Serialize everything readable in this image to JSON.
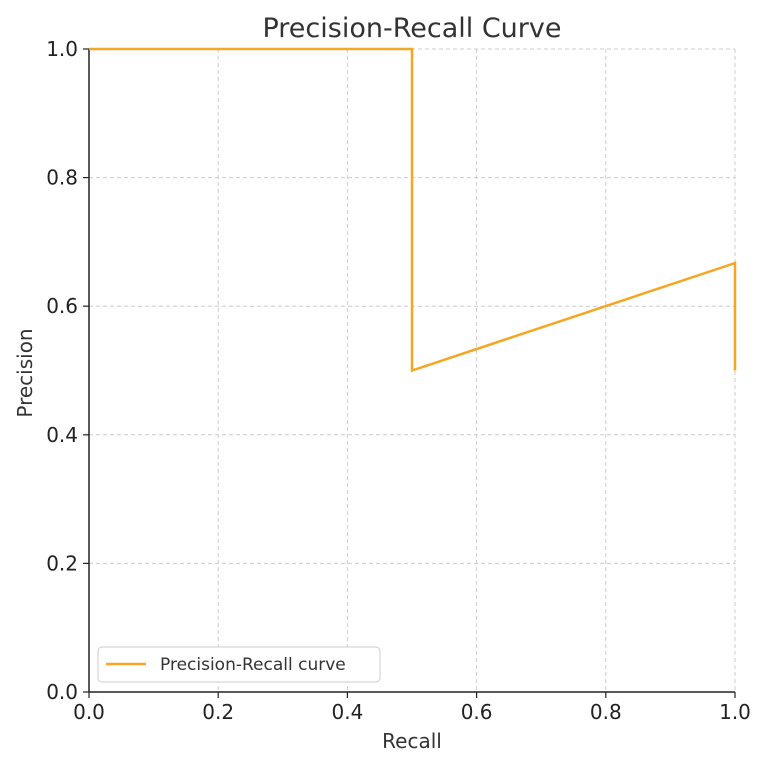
{
  "chart_data": {
    "type": "line",
    "title": "Precision-Recall Curve",
    "xlabel": "Recall",
    "ylabel": "Precision",
    "xlim": [
      0.0,
      1.0
    ],
    "ylim": [
      0.0,
      1.0
    ],
    "xticks": [
      "0.0",
      "0.2",
      "0.4",
      "0.6",
      "0.8",
      "1.0"
    ],
    "yticks": [
      "0.0",
      "0.2",
      "0.4",
      "0.6",
      "0.8",
      "1.0"
    ],
    "grid": true,
    "legend_position": "lower-left",
    "series": [
      {
        "name": "Precision-Recall curve",
        "color": "#f5a623",
        "x": [
          0.0,
          0.5,
          0.5,
          1.0,
          1.0
        ],
        "y": [
          1.0,
          1.0,
          0.5,
          0.667,
          0.5
        ]
      }
    ]
  }
}
